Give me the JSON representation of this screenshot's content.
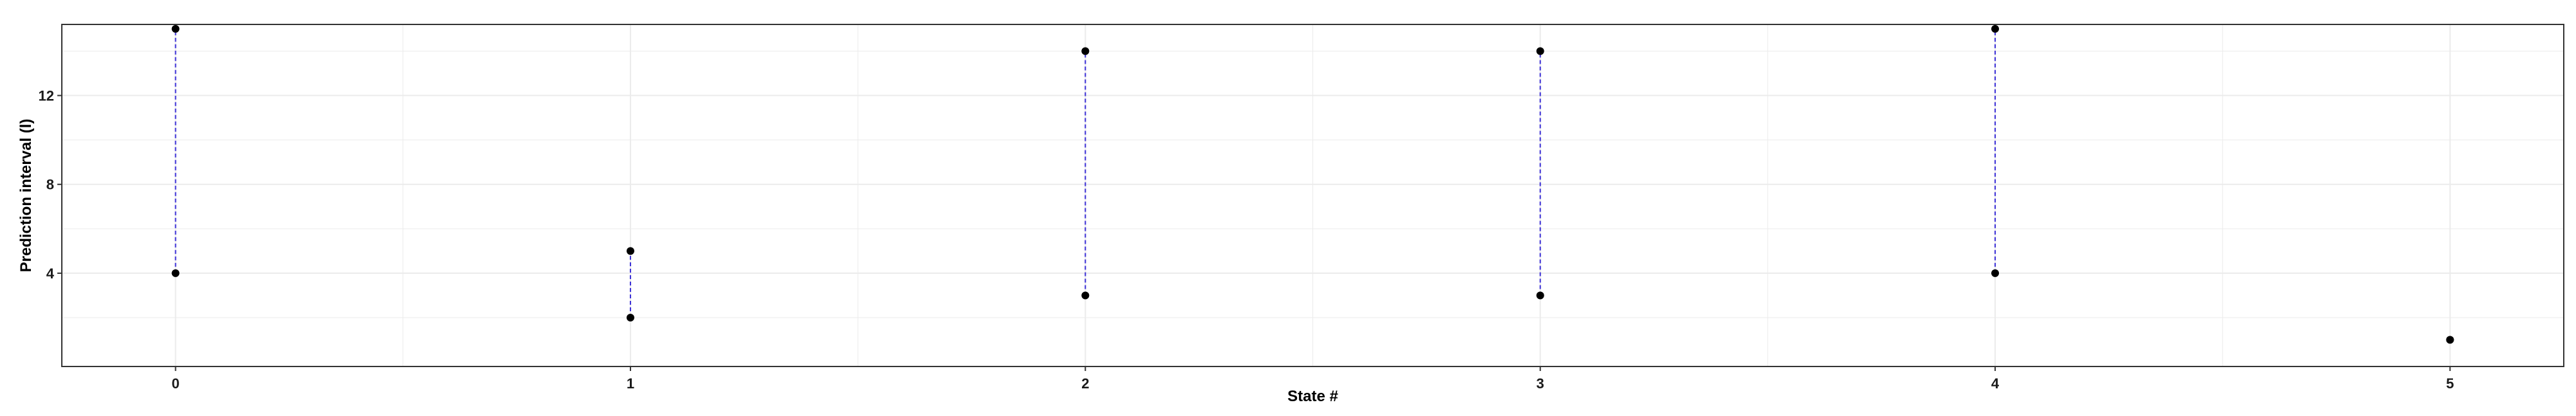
{
  "chart_data": {
    "type": "scatter",
    "title": "",
    "xlabel": "State #",
    "ylabel": "Prediction interval (l)",
    "x_ticks": [
      "0",
      "1",
      "2",
      "3",
      "4",
      "5"
    ],
    "y_ticks": [
      "4",
      "8",
      "12"
    ],
    "xlim": [
      -0.25,
      5.25
    ],
    "ylim": [
      -0.2,
      15.2
    ],
    "grid": true,
    "intervals": [
      {
        "state": 0,
        "lower": 4,
        "upper": 15
      },
      {
        "state": 1,
        "lower": 2,
        "upper": 5
      },
      {
        "state": 2,
        "lower": 3,
        "upper": 14
      },
      {
        "state": 3,
        "lower": 3,
        "upper": 14
      },
      {
        "state": 4,
        "lower": 4,
        "upper": 15
      },
      {
        "state": 5,
        "lower": 1,
        "upper": 1
      }
    ],
    "colors": {
      "interval_line": "#3b2fd6",
      "point": "#000000",
      "grid": "#ebebeb",
      "panel_border": "#333333"
    }
  }
}
